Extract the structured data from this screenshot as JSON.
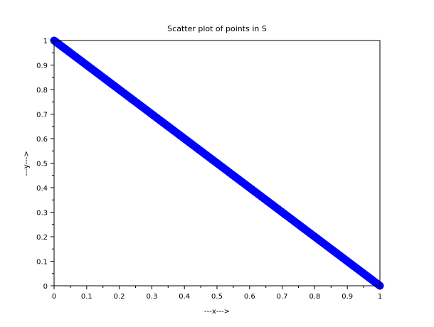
{
  "chart_data": {
    "type": "scatter",
    "title": "Scatter plot of points in S",
    "xlabel": "---x--->",
    "ylabel": "---y--->",
    "xlim": [
      0,
      1
    ],
    "ylim": [
      0,
      1
    ],
    "xticks": [
      0,
      0.1,
      0.2,
      0.3,
      0.4,
      0.5,
      0.6,
      0.7,
      0.8,
      0.9,
      1
    ],
    "yticks": [
      0,
      0.1,
      0.2,
      0.3,
      0.4,
      0.5,
      0.6,
      0.7,
      0.8,
      0.9,
      1
    ],
    "xtick_labels": [
      "0",
      "0.1",
      "0.2",
      "0.3",
      "0.4",
      "0.5",
      "0.6",
      "0.7",
      "0.8",
      "0.9",
      "1"
    ],
    "ytick_labels": [
      "0",
      "0.1",
      "0.2",
      "0.3",
      "0.4",
      "0.5",
      "0.6",
      "0.7",
      "0.8",
      "0.9",
      "1"
    ],
    "grid": false,
    "marker_color": "#0000ff",
    "series": [
      {
        "x": [
          0,
          0.05,
          0.1,
          0.15,
          0.2,
          0.25,
          0.3,
          0.35,
          0.4,
          0.45,
          0.5,
          0.55,
          0.6,
          0.65,
          0.7,
          0.75,
          0.8,
          0.85,
          0.9,
          0.95,
          1
        ],
        "y": [
          1,
          0.95,
          0.9,
          0.85,
          0.8,
          0.75,
          0.7,
          0.65,
          0.6,
          0.55,
          0.5,
          0.45,
          0.4,
          0.35,
          0.3,
          0.25,
          0.2,
          0.15,
          0.1,
          0.05,
          0
        ]
      }
    ]
  }
}
